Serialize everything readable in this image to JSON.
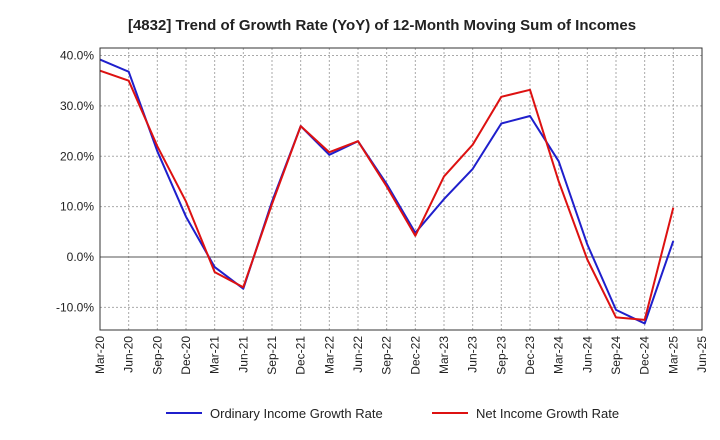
{
  "chart_data": {
    "type": "line",
    "title": "[4832]  Trend of Growth Rate (YoY) of 12-Month Moving Sum of Incomes",
    "xlabel": "",
    "ylabel": "",
    "ylim": [
      -14.5,
      41.5
    ],
    "yticks": [
      -10,
      0,
      10,
      20,
      30,
      40
    ],
    "ytick_labels": [
      "-10.0%",
      "0.0%",
      "10.0%",
      "20.0%",
      "30.0%",
      "40.0%"
    ],
    "categories": [
      "Mar-20",
      "Jun-20",
      "Sep-20",
      "Dec-20",
      "Mar-21",
      "Jun-21",
      "Sep-21",
      "Dec-21",
      "Mar-22",
      "Jun-22",
      "Sep-22",
      "Dec-22",
      "Mar-23",
      "Jun-23",
      "Sep-23",
      "Dec-23",
      "Mar-24",
      "Jun-24",
      "Sep-24",
      "Dec-24",
      "Mar-25",
      "Jun-25"
    ],
    "grid": true,
    "legend_position": "bottom",
    "series": [
      {
        "name": "Ordinary Income Growth Rate",
        "color": "#1f1fcc",
        "values": [
          39.2,
          36.8,
          21.0,
          8.0,
          -2.0,
          -6.3,
          11.0,
          26.0,
          20.3,
          23.0,
          14.5,
          4.8,
          11.5,
          17.5,
          26.5,
          28.0,
          19.0,
          2.5,
          -10.5,
          -13.2,
          3.2,
          null
        ]
      },
      {
        "name": "Net Income Growth Rate",
        "color": "#dd1111",
        "values": [
          37.0,
          35.0,
          22.0,
          11.0,
          -3.0,
          -6.0,
          10.5,
          26.0,
          20.8,
          23.0,
          14.0,
          4.2,
          16.0,
          22.3,
          31.8,
          33.2,
          15.0,
          -0.5,
          -12.0,
          -12.5,
          9.8,
          null
        ]
      }
    ]
  }
}
